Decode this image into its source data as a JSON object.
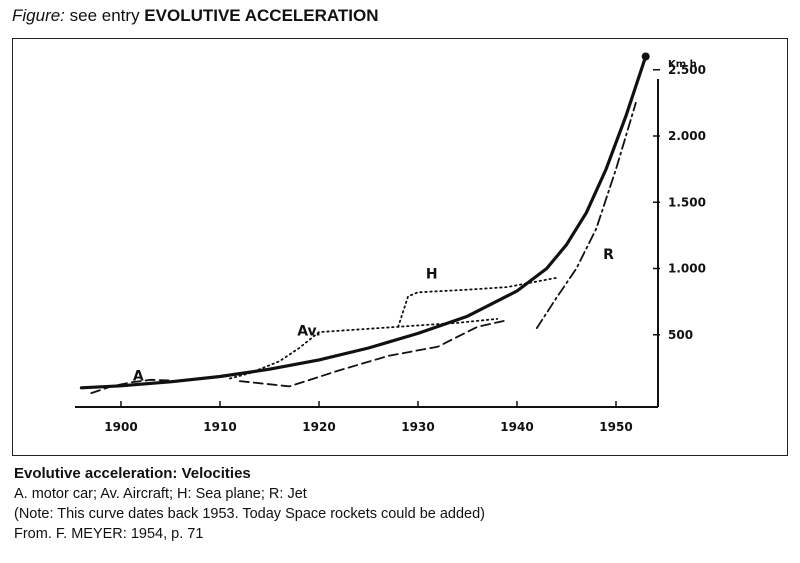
{
  "header": {
    "lead": "Figure:",
    "middle": " see entry ",
    "entry": "EVOLUTIVE ACCELERATION"
  },
  "caption": {
    "title": "Evolutive acceleration: Velocities",
    "legend": "A. motor car; Av. Aircraft; H: Sea plane; R: Jet",
    "note": "(Note: This curve dates back 1953. Today Space rockets could be added)",
    "source": "From. F. MEYER: 1954, p. 71"
  },
  "chart_data": {
    "type": "line",
    "title": "",
    "xlabel": "",
    "ylabel": "Km h",
    "xlim": [
      1896,
      1955
    ],
    "ylim": [
      0,
      2500
    ],
    "x_ticks": [
      1900,
      1910,
      1920,
      1930,
      1940,
      1950
    ],
    "y_ticks": [
      500,
      1000,
      1500,
      2000,
      2500
    ],
    "y_tick_labels": [
      "500",
      "1.000",
      "1.500",
      "2.000",
      "2.500"
    ],
    "y_axis_position": "right",
    "grid": false,
    "series": [
      {
        "name": "",
        "style": "solid",
        "x": [
          1896,
          1900,
          1905,
          1910,
          1915,
          1920,
          1925,
          1930,
          1935,
          1940,
          1943,
          1945,
          1947,
          1949,
          1951,
          1953
        ],
        "y": [
          100,
          115,
          145,
          185,
          240,
          310,
          400,
          510,
          640,
          830,
          1000,
          1180,
          1420,
          1750,
          2150,
          2600
        ]
      },
      {
        "name": "A",
        "style": "dashed",
        "x": [
          1897,
          1899,
          1901,
          1903,
          1905
        ],
        "y": [
          60,
          110,
          140,
          160,
          155
        ]
      },
      {
        "name": "Av",
        "style": "dashed",
        "x": [
          1912,
          1917,
          1922,
          1927,
          1932,
          1936,
          1939
        ],
        "y": [
          150,
          110,
          230,
          340,
          410,
          560,
          610
        ]
      },
      {
        "name": "Av",
        "style": "dotted",
        "x": [
          1911,
          1913,
          1916,
          1918,
          1920,
          1928,
          1934,
          1938
        ],
        "y": [
          170,
          210,
          300,
          400,
          520,
          560,
          590,
          620
        ]
      },
      {
        "name": "H",
        "style": "dotted",
        "x": [
          1928,
          1929,
          1930,
          1935,
          1939,
          1944
        ],
        "y": [
          560,
          790,
          820,
          840,
          860,
          930
        ]
      },
      {
        "name": "R",
        "style": "dashdot",
        "x": [
          1942,
          1944,
          1946,
          1948,
          1950,
          1952
        ],
        "y": [
          550,
          780,
          1000,
          1300,
          1750,
          2250
        ]
      }
    ],
    "annotations": [
      "A",
      "Av.",
      "H",
      "R"
    ]
  }
}
